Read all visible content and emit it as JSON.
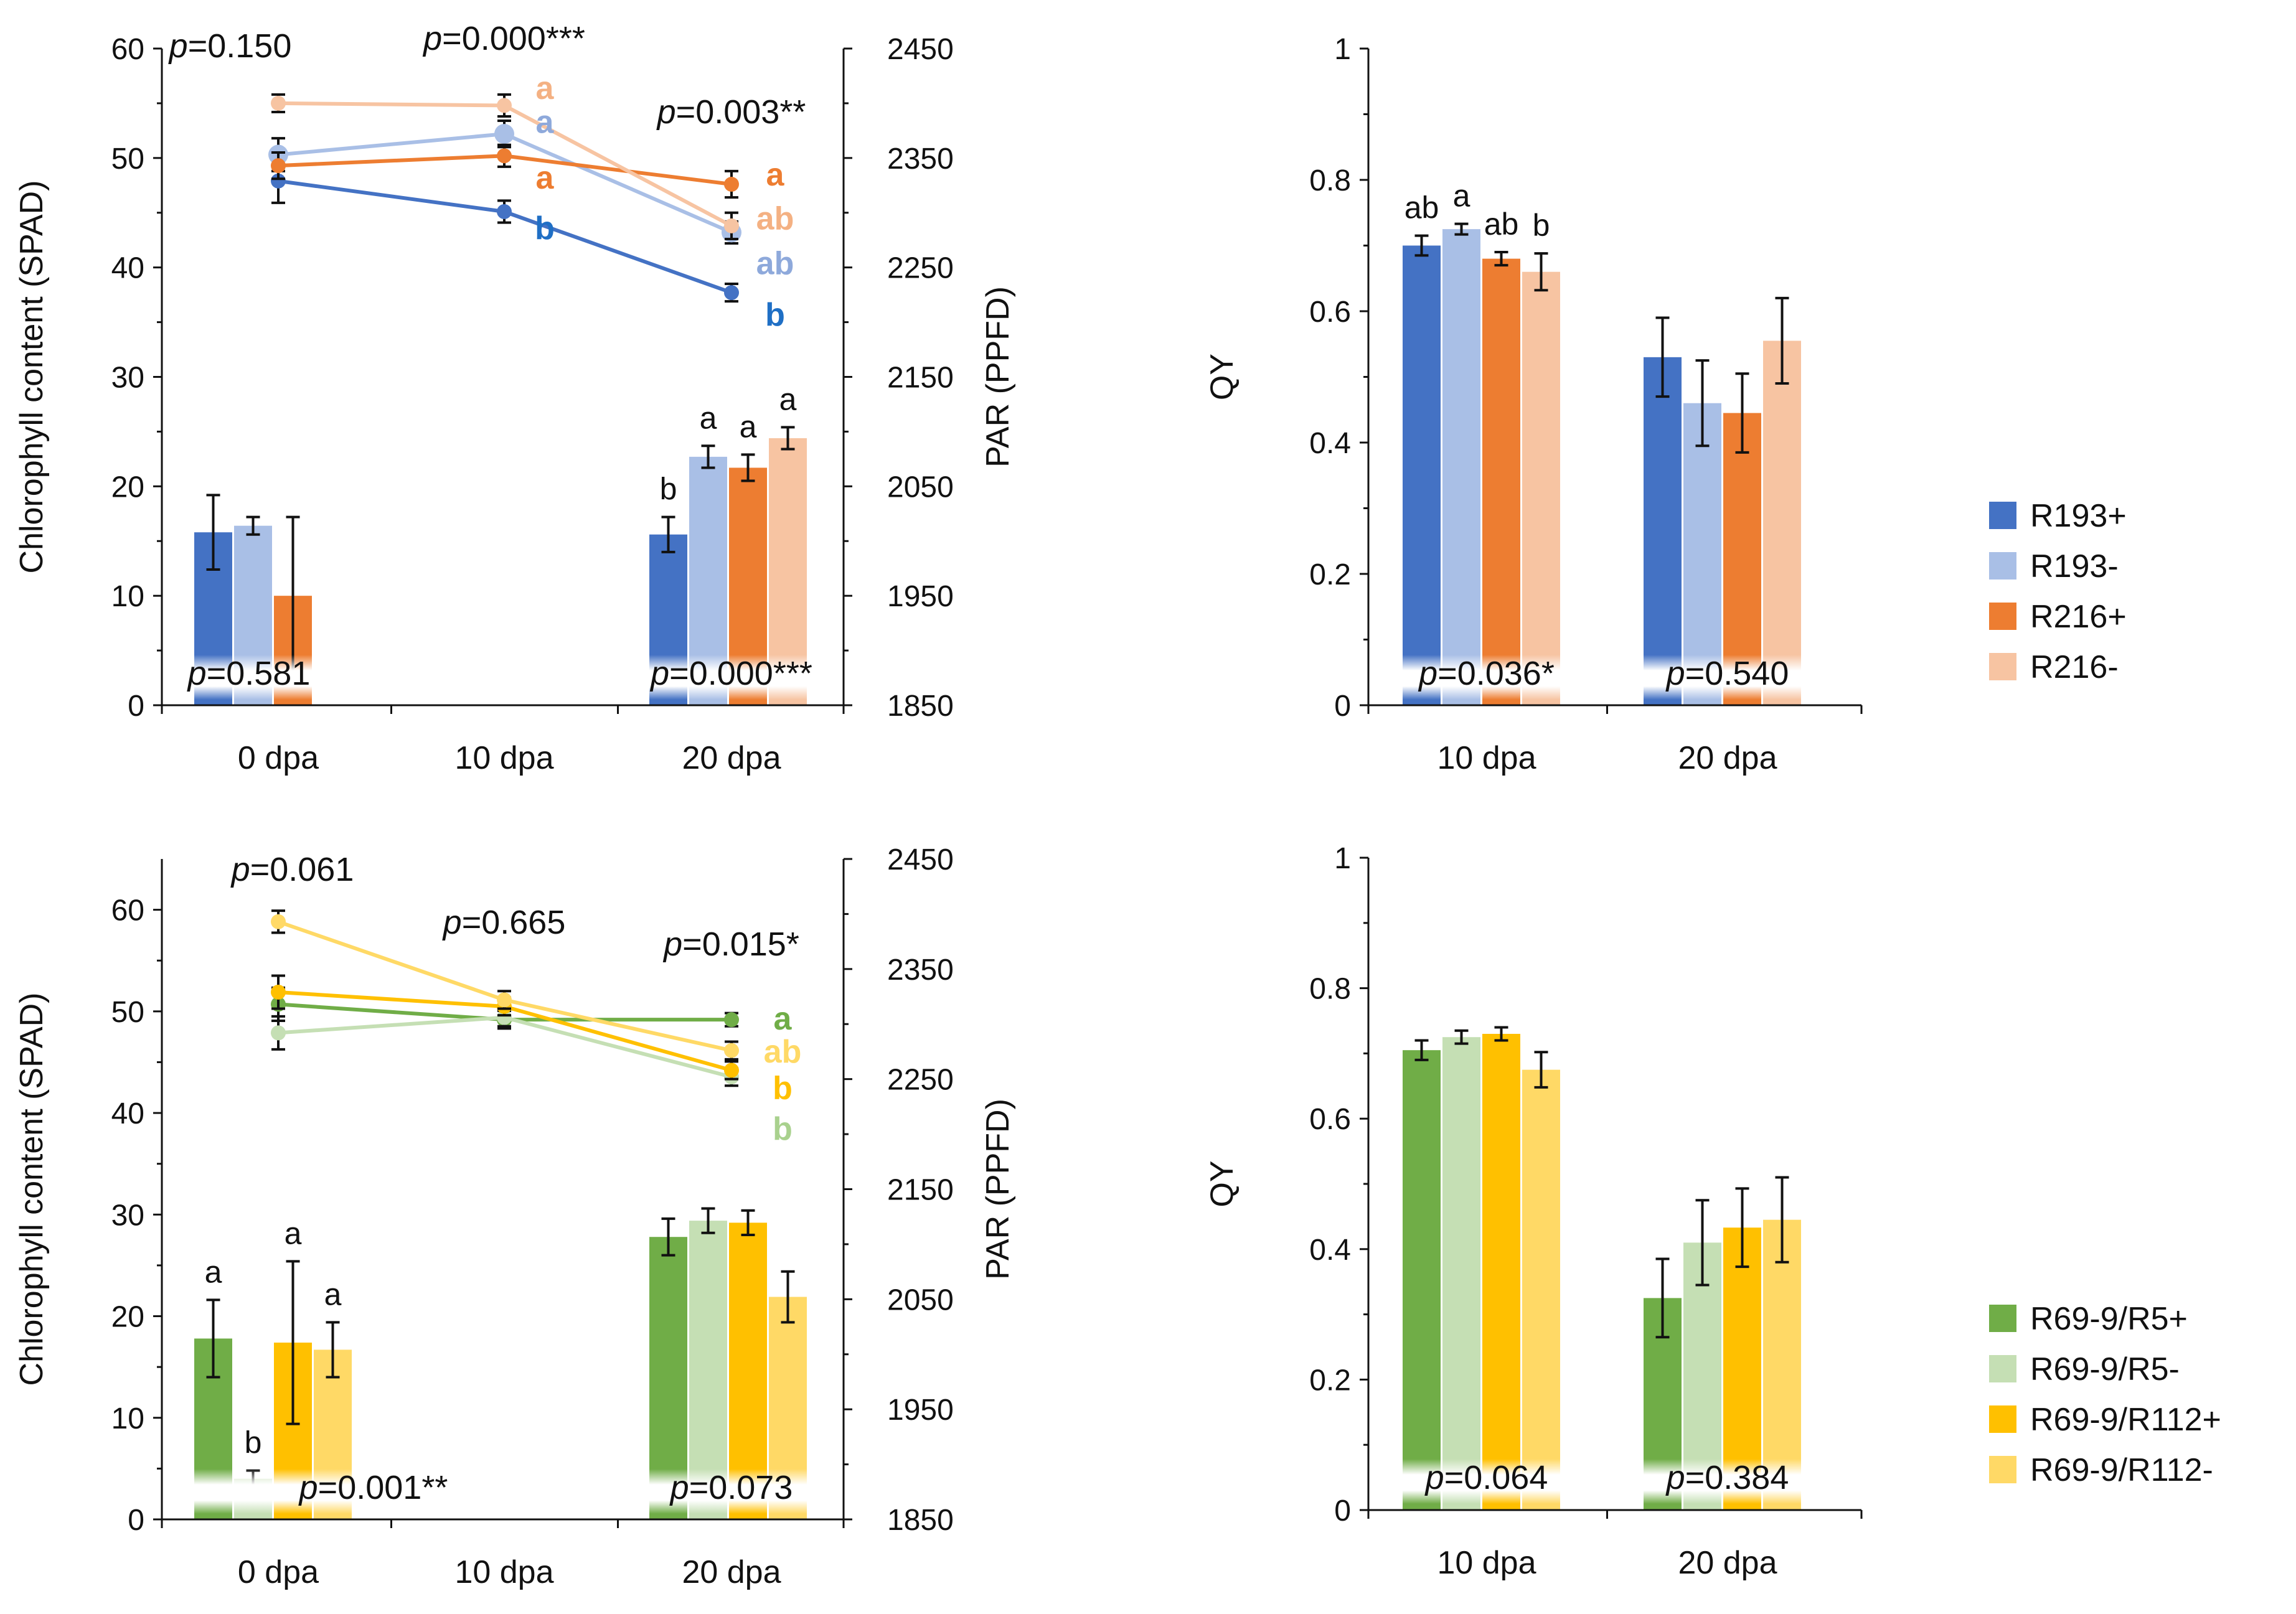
{
  "colors": {
    "R193+": "#4472C4",
    "R193-": "#A9BFE6",
    "R216+": "#ED7D31",
    "R216-": "#F7C4A2",
    "R69-9/R5+": "#70AD47",
    "R69-9/R5-": "#C5DFB4",
    "R69-9/R112+": "#FFC000",
    "R69-9/R112-": "#FFD966",
    "letter_R193+": "#1F6FC5",
    "letter_R193-": "#8EA9DB",
    "letter_R216+": "#ED7D31",
    "letter_R216-": "#F4B183",
    "letter_R69-9/R5+": "#70AD47",
    "letter_R69-9/R5-": "#A9D18E",
    "letter_R69-9/R112+": "#FFC000",
    "letter_R69-9/R112-": "#FFD966"
  },
  "legends": [
    {
      "entries": [
        "R193+",
        "R193-",
        "R216+",
        "R216-"
      ]
    },
    {
      "entries": [
        "R69-9/R5+",
        "R69-9/R5-",
        "R69-9/R112+",
        "R69-9/R112-"
      ]
    }
  ],
  "chart_data": [
    {
      "id": "chl-top",
      "type": "bar+line",
      "ylabel": "Chlorophyll content (SPAD)",
      "y2label": "PAR (PPFD)",
      "ylim": [
        0,
        60
      ],
      "yticks": [
        "0",
        "10",
        "20",
        "30",
        "40",
        "50",
        "60"
      ],
      "y2lim": [
        1850,
        2450
      ],
      "y2ticks": [
        "1850",
        "1950",
        "2050",
        "2150",
        "2250",
        "2350",
        "2450"
      ],
      "categories": [
        "0 dpa",
        "10 dpa",
        "20 dpa"
      ],
      "bar_groups": [
        {
          "category": "0 dpa",
          "bars": [
            {
              "series": "R193+",
              "value": 15.8,
              "err": 3.4
            },
            {
              "series": "R193-",
              "value": 16.4,
              "err": 0.8
            },
            {
              "series": "R216+",
              "value": 10.0,
              "err": 7.2
            }
          ],
          "letters": [
            "",
            "",
            ""
          ],
          "pvalue": "0.581",
          "pvalue_sig": ""
        },
        {
          "category": "20 dpa",
          "bars": [
            {
              "series": "R193+",
              "value": 15.6,
              "err": 1.6
            },
            {
              "series": "R193-",
              "value": 22.7,
              "err": 1.0
            },
            {
              "series": "R216+",
              "value": 21.7,
              "err": 1.2
            },
            {
              "series": "R216-",
              "value": 24.4,
              "err": 1.0
            }
          ],
          "letters": [
            "b",
            "a",
            "a",
            "a"
          ],
          "pvalue": "0.000",
          "pvalue_sig": "***"
        }
      ],
      "lines": [
        {
          "series": "R193+",
          "values": [
            2329,
            2301,
            2227
          ],
          "errs": [
            20,
            10,
            8
          ],
          "letter": "b"
        },
        {
          "series": "R193-",
          "values": [
            2353,
            2372,
            2282
          ],
          "errs": [
            15,
            12,
            10
          ],
          "letter": "ab"
        },
        {
          "series": "R216+",
          "values": [
            2343,
            2352,
            2326
          ],
          "errs": [
            12,
            10,
            12
          ],
          "letter": "a"
        },
        {
          "series": "R216-",
          "values": [
            2400,
            2398,
            2288
          ],
          "errs": [
            8,
            10,
            12
          ],
          "letter": "ab"
        }
      ],
      "line_letters": [
        {
          "series": "R216-",
          "text": "a",
          "value": 2413
        },
        {
          "series": "R193-",
          "text": "a",
          "value": 2382
        },
        {
          "series": "R216+",
          "text": "a",
          "value": 2331
        },
        {
          "series": "R193+",
          "text": "b",
          "value": 2285
        },
        {
          "series": "R216+",
          "text": "a",
          "value": 2334
        },
        {
          "series": "R216-",
          "text": "ab",
          "value": 2294
        },
        {
          "series": "R193-",
          "text": "ab",
          "value": 2253
        },
        {
          "series": "R193+",
          "text": "b",
          "value": 2206
        }
      ],
      "line_pvalues": [
        {
          "category": "0 dpa",
          "text": "0.150",
          "sig": ""
        },
        {
          "category": "10 dpa",
          "text": "0.000",
          "sig": "***"
        },
        {
          "category": "20 dpa",
          "text": "0.003",
          "sig": "**"
        }
      ]
    },
    {
      "id": "qy-top",
      "type": "bar",
      "ylabel": "QY",
      "ylim": [
        0,
        1
      ],
      "yticks": [
        "0",
        "0.2",
        "0.4",
        "0.6",
        "0.8",
        "1"
      ],
      "categories": [
        "10 dpa",
        "20 dpa"
      ],
      "bar_groups": [
        {
          "category": "10 dpa",
          "bars": [
            {
              "series": "R193+",
              "value": 0.7,
              "err": 0.015
            },
            {
              "series": "R193-",
              "value": 0.725,
              "err": 0.008
            },
            {
              "series": "R216+",
              "value": 0.68,
              "err": 0.01
            },
            {
              "series": "R216-",
              "value": 0.66,
              "err": 0.028
            }
          ],
          "letters": [
            "ab",
            "a",
            "ab",
            "b"
          ],
          "pvalue": "0.036",
          "pvalue_sig": "*"
        },
        {
          "category": "20 dpa",
          "bars": [
            {
              "series": "R193+",
              "value": 0.53,
              "err": 0.06
            },
            {
              "series": "R193-",
              "value": 0.46,
              "err": 0.065
            },
            {
              "series": "R216+",
              "value": 0.445,
              "err": 0.06
            },
            {
              "series": "R216-",
              "value": 0.555,
              "err": 0.065
            }
          ],
          "letters": [
            "",
            "",
            "",
            ""
          ],
          "pvalue": "0.540",
          "pvalue_sig": ""
        }
      ]
    },
    {
      "id": "chl-bottom",
      "type": "bar+line",
      "ylabel": "Chlorophyll content (SPAD)",
      "y2label": "PAR (PPFD)",
      "ylim": [
        0,
        65
      ],
      "yticks": [
        "0",
        "10",
        "20",
        "30",
        "40",
        "50",
        "60"
      ],
      "y2lim": [
        1850,
        2450
      ],
      "y2ticks": [
        "1850",
        "1950",
        "2050",
        "2150",
        "2250",
        "2350",
        "2450"
      ],
      "categories": [
        "0 dpa",
        "10 dpa",
        "20 dpa"
      ],
      "bar_groups": [
        {
          "category": "0 dpa",
          "bars": [
            {
              "series": "R69-9/R5+",
              "value": 17.8,
              "err": 3.8
            },
            {
              "series": "R69-9/R5-",
              "value": 4.0,
              "err": 0.8
            },
            {
              "series": "R69-9/R112+",
              "value": 17.4,
              "err": 8.0
            },
            {
              "series": "R69-9/R112-",
              "value": 16.7,
              "err": 2.7
            }
          ],
          "letters": [
            "a",
            "b",
            "a",
            "a"
          ],
          "pvalue": "0.001",
          "pvalue_sig": "**"
        },
        {
          "category": "20 dpa",
          "bars": [
            {
              "series": "R69-9/R5+",
              "value": 27.8,
              "err": 1.8
            },
            {
              "series": "R69-9/R5-",
              "value": 29.4,
              "err": 1.2
            },
            {
              "series": "R69-9/R112+",
              "value": 29.2,
              "err": 1.2
            },
            {
              "series": "R69-9/R112-",
              "value": 21.9,
              "err": 2.5
            }
          ],
          "letters": [
            "",
            "",
            "",
            ""
          ],
          "pvalue": "0.073",
          "pvalue_sig": ""
        }
      ],
      "lines": [
        {
          "series": "R69-9/R5+",
          "values": [
            2318,
            2304,
            2304
          ],
          "errs": [
            15,
            8,
            6
          ],
          "letter": "a"
        },
        {
          "series": "R69-9/R5-",
          "values": [
            2292,
            2306,
            2252
          ],
          "errs": [
            15,
            8,
            8
          ],
          "letter": "b"
        },
        {
          "series": "R69-9/R112+",
          "values": [
            2329,
            2316,
            2258
          ],
          "errs": [
            15,
            8,
            8
          ],
          "letter": "b"
        },
        {
          "series": "R69-9/R112-",
          "values": [
            2393,
            2322,
            2276
          ],
          "errs": [
            10,
            8,
            8
          ],
          "letter": "ab"
        }
      ],
      "line_letters": [
        {
          "series": "R69-9/R5+",
          "text": "a",
          "value": 2304
        },
        {
          "series": "R69-9/R112-",
          "text": "ab",
          "value": 2274
        },
        {
          "series": "R69-9/R112+",
          "text": "b",
          "value": 2241
        },
        {
          "series": "R69-9/R5-",
          "text": "b",
          "value": 2204
        }
      ],
      "line_pvalues": [
        {
          "category": "0 dpa",
          "text": "0.061",
          "sig": ""
        },
        {
          "category": "10 dpa",
          "text": "0.665",
          "sig": ""
        },
        {
          "category": "20 dpa",
          "text": "0.015",
          "sig": "*"
        }
      ]
    },
    {
      "id": "qy-bottom",
      "type": "bar",
      "ylabel": "QY",
      "ylim": [
        0,
        1
      ],
      "yticks": [
        "0",
        "0.2",
        "0.4",
        "0.6",
        "0.8",
        "1"
      ],
      "categories": [
        "10 dpa",
        "20 dpa"
      ],
      "bar_groups": [
        {
          "category": "10 dpa",
          "bars": [
            {
              "series": "R69-9/R5+",
              "value": 0.705,
              "err": 0.015
            },
            {
              "series": "R69-9/R5-",
              "value": 0.725,
              "err": 0.01
            },
            {
              "series": "R69-9/R112+",
              "value": 0.73,
              "err": 0.01
            },
            {
              "series": "R69-9/R112-",
              "value": 0.675,
              "err": 0.027
            }
          ],
          "letters": [
            "",
            "",
            "",
            ""
          ],
          "pvalue": "0.064",
          "pvalue_sig": ""
        },
        {
          "category": "20 dpa",
          "bars": [
            {
              "series": "R69-9/R5+",
              "value": 0.325,
              "err": 0.06
            },
            {
              "series": "R69-9/R5-",
              "value": 0.41,
              "err": 0.065
            },
            {
              "series": "R69-9/R112+",
              "value": 0.433,
              "err": 0.06
            },
            {
              "series": "R69-9/R112-",
              "value": 0.445,
              "err": 0.065
            }
          ],
          "letters": [
            "",
            "",
            "",
            ""
          ],
          "pvalue": "0.384",
          "pvalue_sig": ""
        }
      ]
    }
  ]
}
